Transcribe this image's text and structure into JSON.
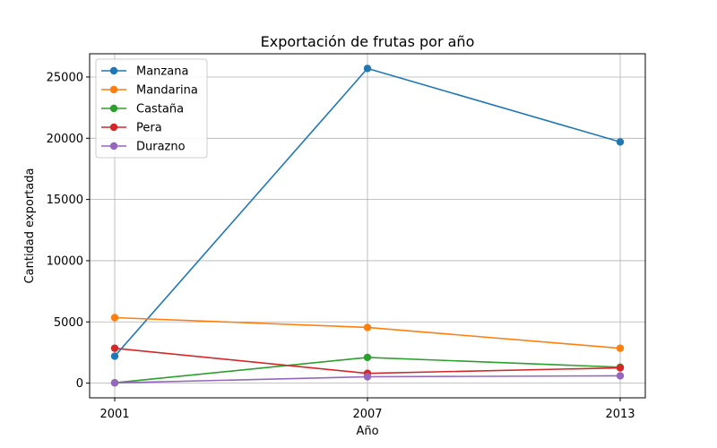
{
  "chart_data": {
    "type": "line",
    "title": "Exportación de frutas por año",
    "xlabel": "Año",
    "ylabel": "Cantidad exportada",
    "x": [
      2001,
      2007,
      2013
    ],
    "xticks": [
      "2001",
      "2007",
      "2013"
    ],
    "yticks": [
      0,
      5000,
      10000,
      15000,
      20000,
      25000
    ],
    "ylim": [
      -1200,
      26900
    ],
    "grid": true,
    "legend_position": "top-left",
    "series": [
      {
        "name": "Manzana",
        "color": "#1f77b4",
        "values": [
          2200,
          25700,
          19700
        ]
      },
      {
        "name": "Mandarina",
        "color": "#ff7f0e",
        "values": [
          5350,
          4550,
          2850
        ]
      },
      {
        "name": "Castaña",
        "color": "#2ca02c",
        "values": [
          30,
          2100,
          1300
        ]
      },
      {
        "name": "Pera",
        "color": "#d62728",
        "values": [
          2850,
          800,
          1250
        ]
      },
      {
        "name": "Durazno",
        "color": "#9467bd",
        "values": [
          20,
          520,
          600
        ]
      }
    ]
  }
}
